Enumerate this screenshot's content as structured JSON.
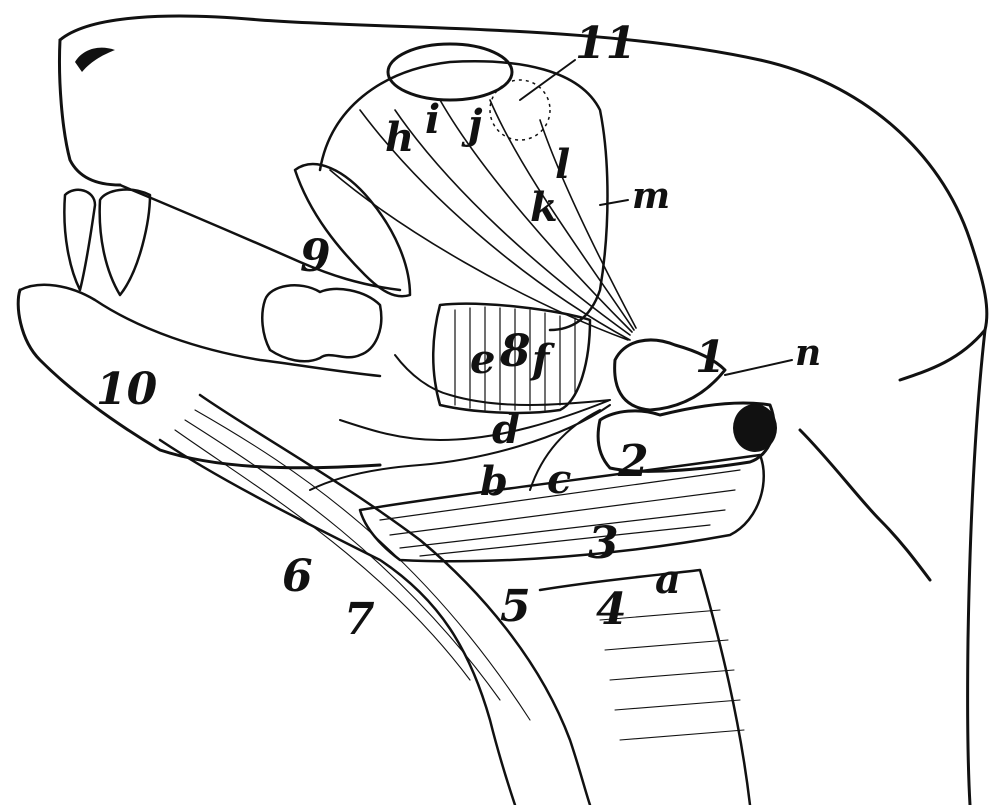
{
  "figure": {
    "ink_color": "#111111",
    "paper_color": "#ffffff",
    "labels": {
      "n1": "1",
      "n2": "2",
      "n3": "3",
      "n4": "4",
      "n5": "5",
      "n6": "6",
      "n7": "7",
      "n8": "8",
      "n9": "9",
      "n10": "10",
      "n11": "11",
      "a": "a",
      "b": "b",
      "c": "c",
      "d": "d",
      "e": "e",
      "f": "f",
      "h": "h",
      "i": "i",
      "j": "j",
      "k": "k",
      "l": "l",
      "m": "m",
      "n": "n"
    }
  }
}
